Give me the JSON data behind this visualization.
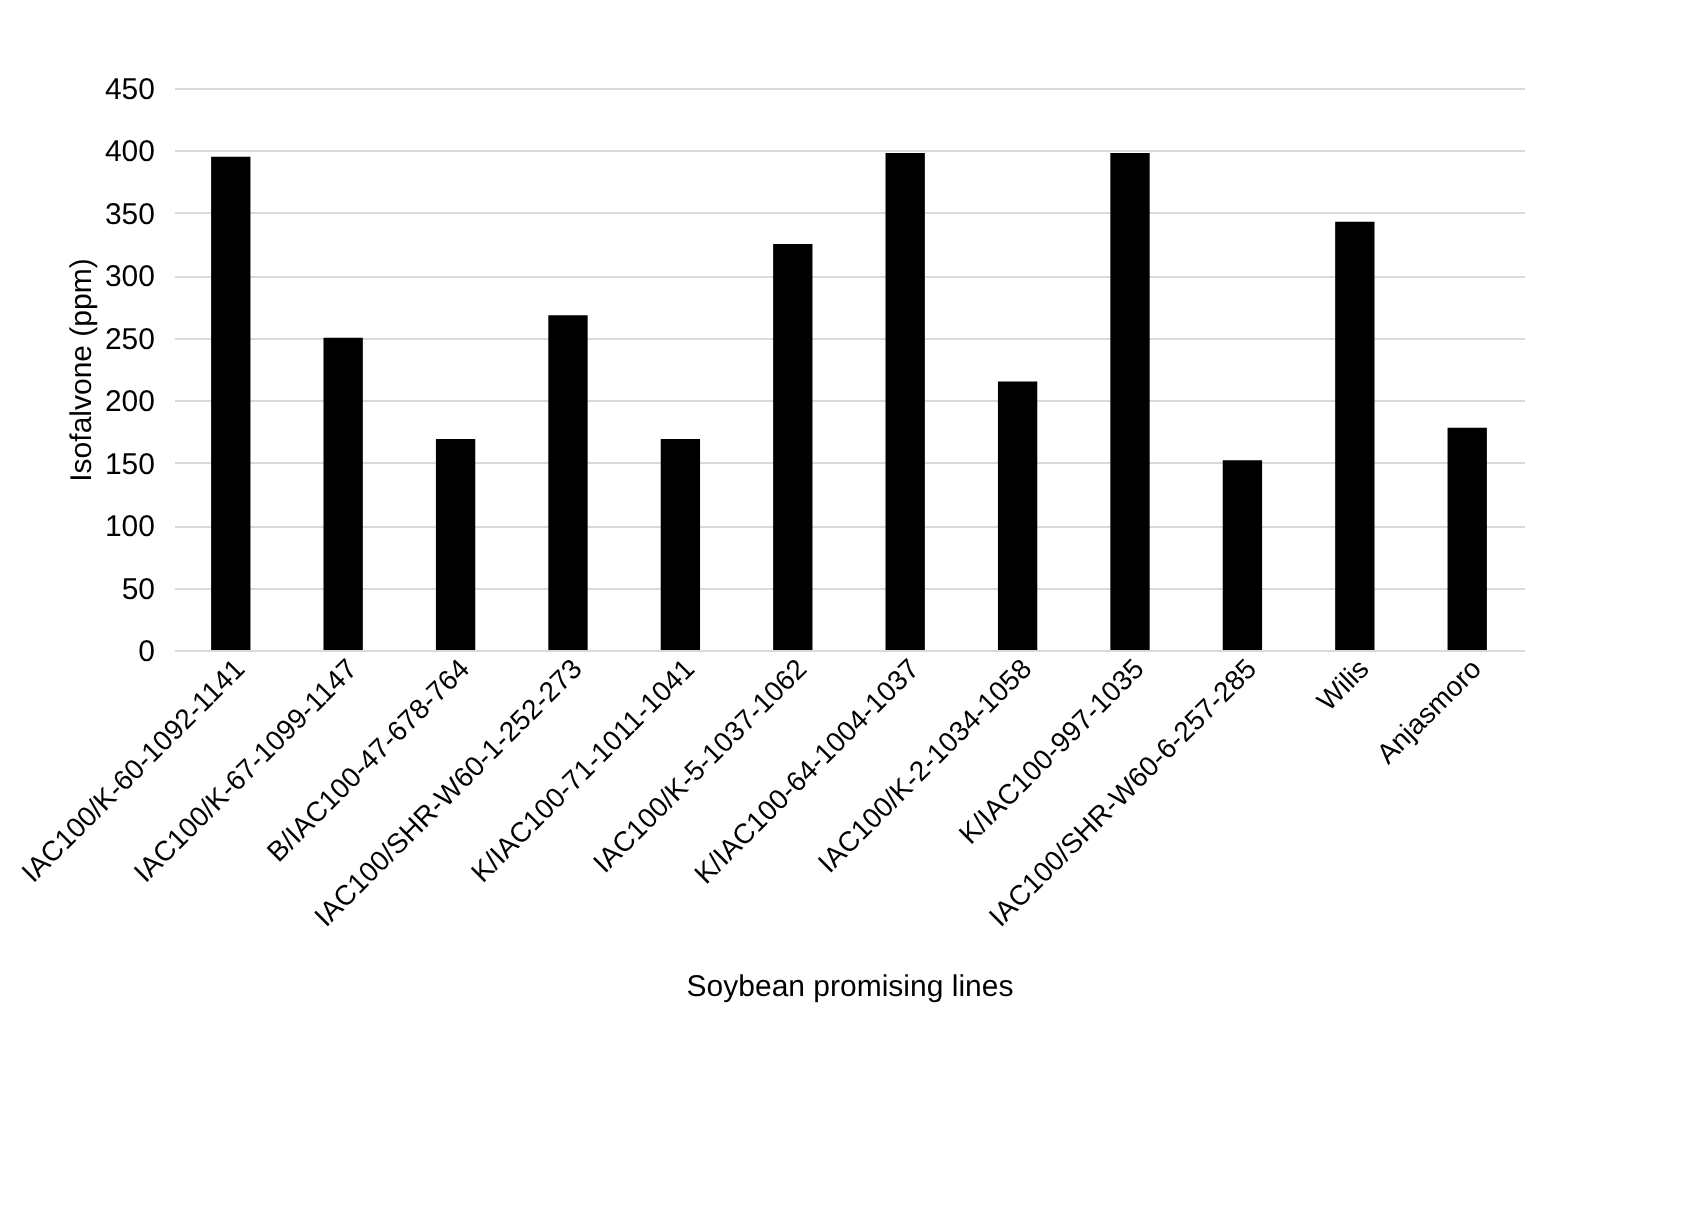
{
  "chart_data": {
    "type": "bar",
    "xlabel": "Soybean promising lines",
    "ylabel": "Isofalvone (ppm)",
    "categories": [
      "IAC100/K-60-1092-1141",
      "IAC100/K-67-1099-1147",
      "B/IAC100-47-678-764",
      "IAC100/SHR-W60-1-252-273",
      "K/IAC100-71-1011-1041",
      "IAC100/K-5-1037-1062",
      "K/IAC100-64-1004-1037",
      "IAC100/K-2-1034-1058",
      "K/IAC100-997-1035",
      "IAC100/SHR-W60-6-257-285",
      "Wilis",
      "Anjasmoro"
    ],
    "values": [
      395,
      250,
      169,
      268,
      169,
      325,
      398,
      215,
      398,
      152,
      343,
      178
    ],
    "color": "#000000",
    "ylim": [
      0,
      450
    ],
    "yticks": [
      0,
      50,
      100,
      150,
      200,
      250,
      300,
      350,
      400,
      450
    ],
    "grid": "y"
  }
}
